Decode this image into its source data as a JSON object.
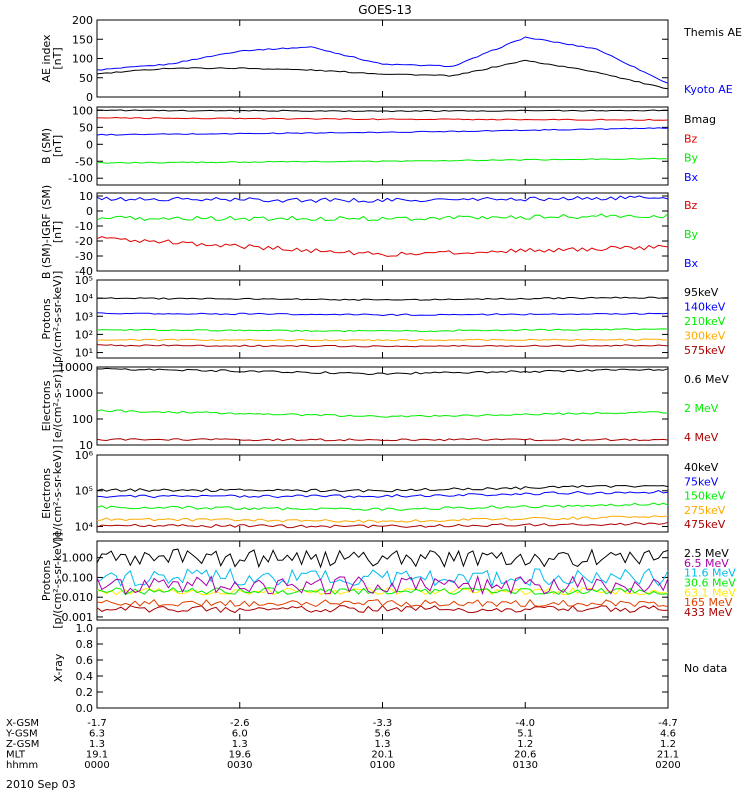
{
  "title": "GOES-13",
  "date_label": "2010 Sep 03",
  "x_axis": {
    "tick_labels": [
      "0000",
      "0030",
      "0100",
      "0130",
      "0200"
    ],
    "rows": [
      {
        "label": "X-GSM",
        "values": [
          "-1.7",
          "-2.6",
          "-3.3",
          "-4.0",
          "-4.7"
        ]
      },
      {
        "label": "Y-GSM",
        "values": [
          "6.3",
          "6.0",
          "5.6",
          "5.1",
          "4.6"
        ]
      },
      {
        "label": "Z-GSM",
        "values": [
          "1.3",
          "1.3",
          "1.3",
          "1.2",
          "1.2"
        ]
      },
      {
        "label": "MLT",
        "values": [
          "19.1",
          "19.6",
          "20.1",
          "20.6",
          "21.1"
        ]
      },
      {
        "label": "hhmm",
        "values": [
          "0000",
          "0030",
          "0100",
          "0130",
          "0200"
        ]
      }
    ]
  },
  "colors": {
    "blue": "#0000ff",
    "green": "#00ee00",
    "red": "#e00000",
    "black": "#000000",
    "orange": "#ffaa00",
    "darkred": "#aa0000",
    "cyan": "#00bbee",
    "purple": "#aa00aa",
    "yellow": "#ffee00"
  },
  "chart_data": [
    {
      "type": "line",
      "ylabel": "AE index\n[nT]",
      "ylim": [
        0,
        200
      ],
      "scale": "linear",
      "ytick_labels": [
        "0",
        "50",
        "100",
        "150",
        "200"
      ],
      "x_hours": [
        0,
        0.25,
        0.5,
        0.75,
        1.0,
        1.25,
        1.5,
        1.75,
        2.0
      ],
      "series": [
        {
          "name": "Kyoto AE",
          "color": "#0000ff",
          "values": [
            70,
            85,
            120,
            130,
            85,
            80,
            155,
            125,
            35
          ]
        },
        {
          "name": "Themis AE",
          "color": "#000000",
          "values": [
            60,
            75,
            75,
            70,
            60,
            55,
            95,
            65,
            20
          ]
        }
      ]
    },
    {
      "type": "line",
      "ylabel": "B (SM)\n[nT]",
      "ylim": [
        -120,
        110
      ],
      "scale": "linear",
      "ytick_labels": [
        "-100",
        "-50",
        "0",
        "50",
        "100"
      ],
      "x_hours": [
        0,
        1,
        2
      ],
      "series": [
        {
          "name": "Bx",
          "color": "#0000ff",
          "values": [
            28,
            35,
            48
          ]
        },
        {
          "name": "By",
          "color": "#00ee00",
          "values": [
            -55,
            -50,
            -42
          ]
        },
        {
          "name": "Bz",
          "color": "#e00000",
          "values": [
            78,
            74,
            72
          ]
        },
        {
          "name": "Bmag",
          "color": "#000000",
          "values": [
            100,
            98,
            100
          ]
        }
      ]
    },
    {
      "type": "line",
      "ylabel": "B (SM)-IGRF (SM)\n[nT]",
      "ylim": [
        -40,
        12
      ],
      "scale": "linear",
      "ytick_labels": [
        "-40",
        "-30",
        "-20",
        "-10",
        "0",
        "10"
      ],
      "x_hours": [
        0,
        1,
        2
      ],
      "series": [
        {
          "name": "Bx",
          "color": "#0000ff",
          "values": [
            8,
            7,
            9
          ]
        },
        {
          "name": "By",
          "color": "#00ee00",
          "values": [
            -5,
            -5,
            -3
          ]
        },
        {
          "name": "Bz",
          "color": "#e00000",
          "values": [
            -18,
            -29,
            -24
          ]
        }
      ]
    },
    {
      "type": "line",
      "ylabel": "Protons\n[p/(cm²-s-sr-keV)]",
      "ylim": [
        5,
        100000
      ],
      "scale": "log",
      "ytick_labels": [
        "10¹",
        "10²",
        "10³",
        "10⁴",
        "10⁵"
      ],
      "x_hours": [
        0,
        1,
        2
      ],
      "series": [
        {
          "name": "575keV",
          "color": "#aa0000",
          "values": [
            25,
            22,
            25
          ]
        },
        {
          "name": "300keV",
          "color": "#ffaa00",
          "values": [
            50,
            48,
            52
          ]
        },
        {
          "name": "210keV",
          "color": "#00ee00",
          "values": [
            180,
            150,
            200
          ]
        },
        {
          "name": "140keV",
          "color": "#0000ff",
          "values": [
            1500,
            1200,
            1400
          ]
        },
        {
          "name": "95keV",
          "color": "#000000",
          "values": [
            10000,
            8000,
            11000
          ]
        }
      ]
    },
    {
      "type": "line",
      "ylabel": "Electrons\n[e/(cm²-s-sr)]",
      "ylim": [
        10,
        10000
      ],
      "scale": "log",
      "ytick_labels": [
        "10",
        "100",
        "1000",
        "10000"
      ],
      "x_hours": [
        0,
        1,
        2
      ],
      "series": [
        {
          "name": "4 MeV",
          "color": "#aa0000",
          "values": [
            16,
            16,
            16
          ]
        },
        {
          "name": "2 MeV",
          "color": "#00ee00",
          "values": [
            210,
            120,
            180
          ]
        },
        {
          "name": "0.6 MeV",
          "color": "#000000",
          "values": [
            8500,
            5500,
            8000
          ]
        }
      ]
    },
    {
      "type": "line",
      "ylabel": "Electrons\n[e/(cm²-s-sr-keV)]",
      "ylim": [
        7000,
        1000000
      ],
      "scale": "log",
      "ytick_labels": [
        "10⁴",
        "10⁵",
        "10⁶"
      ],
      "x_hours": [
        0,
        1,
        2
      ],
      "series": [
        {
          "name": "475keV",
          "color": "#aa0000",
          "values": [
            10500,
            10000,
            12000
          ]
        },
        {
          "name": "275keV",
          "color": "#ffaa00",
          "values": [
            16000,
            14000,
            19000
          ]
        },
        {
          "name": "150keV",
          "color": "#00ee00",
          "values": [
            35000,
            30000,
            42000
          ]
        },
        {
          "name": "75keV",
          "color": "#0000ff",
          "values": [
            70000,
            70000,
            95000
          ]
        },
        {
          "name": "40keV",
          "color": "#000000",
          "values": [
            105000,
            100000,
            140000
          ]
        }
      ]
    },
    {
      "type": "line",
      "ylabel": "Protons\n[p/(cm²-s-sr-keV)]",
      "ylim": [
        0.0007,
        7
      ],
      "scale": "log",
      "ytick_labels": [
        "0.001",
        "0.010",
        "0.100",
        "1.000"
      ],
      "x_hours": [
        0,
        1,
        2
      ],
      "series": [
        {
          "name": "433 MeV",
          "color": "#aa0000",
          "values": [
            0.0025,
            0.0025,
            0.0025
          ]
        },
        {
          "name": "165 MeV",
          "color": "#e04000",
          "values": [
            0.005,
            0.005,
            0.005
          ]
        },
        {
          "name": "63.1 MeV",
          "color": "#ffee00",
          "values": [
            0.02,
            0.02,
            0.02
          ]
        },
        {
          "name": "30.6 MeV",
          "color": "#00ee00",
          "values": [
            0.02,
            0.02,
            0.02
          ]
        },
        {
          "name": "11.6 MeV",
          "color": "#00bbee",
          "values": [
            0.1,
            0.1,
            0.1
          ]
        },
        {
          "name": "6.5 MeV",
          "color": "#aa00aa",
          "values": [
            0.04,
            0.04,
            0.04
          ]
        },
        {
          "name": "2.5 MeV",
          "color": "#000000",
          "values": [
            1.0,
            0.9,
            1.0
          ]
        }
      ]
    },
    {
      "type": "line",
      "ylabel": "X-ray",
      "ylim": [
        0,
        1
      ],
      "scale": "linear",
      "ytick_labels": [
        "0.0",
        "0.2",
        "0.4",
        "0.6",
        "0.8",
        "1.0"
      ],
      "x_hours": [],
      "series": [],
      "note": "No data"
    }
  ]
}
